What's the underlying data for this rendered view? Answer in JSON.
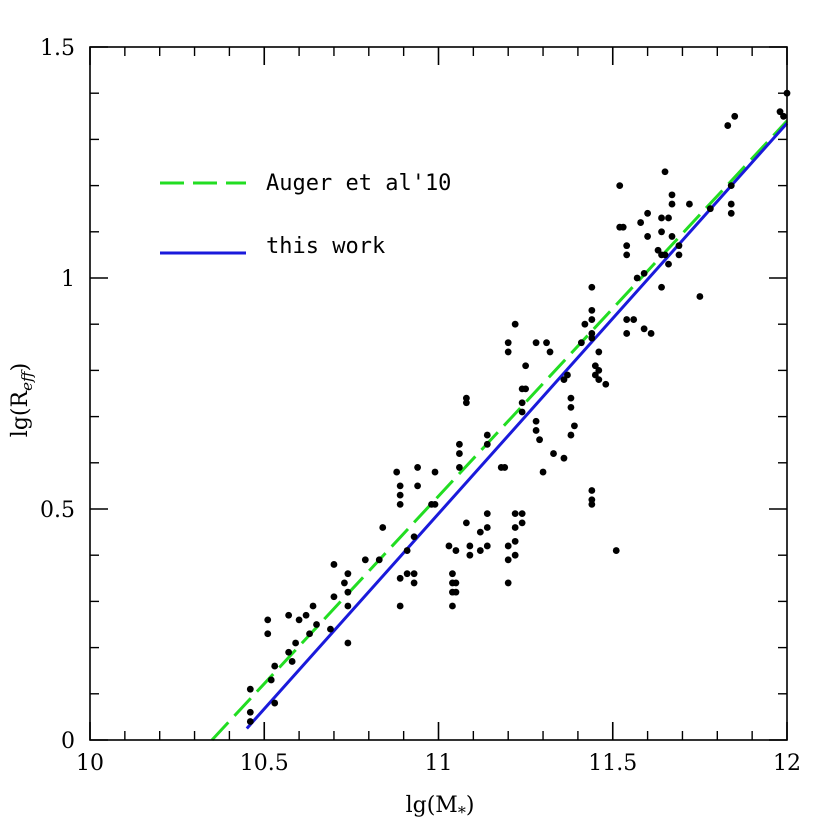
{
  "chart_data": {
    "type": "scatter",
    "xlabel": "lg(M",
    "xlabel_sub": "*",
    "xlabel_close": ")",
    "ylabel": "lg(R",
    "ylabel_sub": "eff",
    "ylabel_close": ")",
    "xlim": [
      10,
      12
    ],
    "ylim": [
      0,
      1.5
    ],
    "x_ticks": [
      {
        "value": 10,
        "label": "10"
      },
      {
        "value": 10.5,
        "label": "10.5"
      },
      {
        "value": 11,
        "label": "11"
      },
      {
        "value": 11.5,
        "label": "11.5"
      },
      {
        "value": 12,
        "label": "12"
      }
    ],
    "y_ticks": [
      {
        "value": 0,
        "label": "0"
      },
      {
        "value": 0.5,
        "label": "0.5"
      },
      {
        "value": 1,
        "label": "1"
      },
      {
        "value": 1.5,
        "label": "1.5"
      }
    ],
    "x_minor_step": 0.1,
    "y_minor_step": 0.1,
    "grid": false,
    "legend_position": "upper-left",
    "lines": [
      {
        "name": "Auger et al'10",
        "style": "dashed",
        "color": "#22dd22",
        "x": [
          10.35,
          12.0
        ],
        "y": [
          0.0,
          1.34
        ]
      },
      {
        "name": "this work",
        "style": "solid",
        "color": "#1a1adb",
        "x": [
          10.45,
          12.0
        ],
        "y": [
          0.025,
          1.335
        ]
      }
    ],
    "points": [
      [
        10.46,
        0.11
      ],
      [
        10.46,
        0.06
      ],
      [
        10.46,
        0.04
      ],
      [
        10.51,
        0.26
      ],
      [
        10.51,
        0.23
      ],
      [
        10.52,
        0.13
      ],
      [
        10.53,
        0.16
      ],
      [
        10.53,
        0.08
      ],
      [
        10.57,
        0.27
      ],
      [
        10.57,
        0.19
      ],
      [
        10.58,
        0.17
      ],
      [
        10.59,
        0.21
      ],
      [
        10.6,
        0.26
      ],
      [
        10.62,
        0.27
      ],
      [
        10.63,
        0.23
      ],
      [
        10.64,
        0.29
      ],
      [
        10.65,
        0.25
      ],
      [
        10.69,
        0.24
      ],
      [
        10.7,
        0.31
      ],
      [
        10.7,
        0.38
      ],
      [
        10.73,
        0.34
      ],
      [
        10.74,
        0.36
      ],
      [
        10.74,
        0.32
      ],
      [
        10.74,
        0.29
      ],
      [
        10.74,
        0.21
      ],
      [
        10.79,
        0.39
      ],
      [
        10.83,
        0.39
      ],
      [
        10.84,
        0.46
      ],
      [
        10.88,
        0.58
      ],
      [
        10.89,
        0.55
      ],
      [
        10.89,
        0.53
      ],
      [
        10.89,
        0.51
      ],
      [
        10.89,
        0.35
      ],
      [
        10.89,
        0.29
      ],
      [
        10.91,
        0.41
      ],
      [
        10.91,
        0.36
      ],
      [
        10.93,
        0.44
      ],
      [
        10.93,
        0.36
      ],
      [
        10.93,
        0.34
      ],
      [
        10.94,
        0.59
      ],
      [
        10.94,
        0.55
      ],
      [
        10.98,
        0.51
      ],
      [
        10.99,
        0.51
      ],
      [
        10.99,
        0.58
      ],
      [
        11.03,
        0.42
      ],
      [
        11.04,
        0.36
      ],
      [
        11.04,
        0.34
      ],
      [
        11.04,
        0.32
      ],
      [
        11.04,
        0.29
      ],
      [
        11.05,
        0.41
      ],
      [
        11.05,
        0.34
      ],
      [
        11.05,
        0.32
      ],
      [
        11.06,
        0.64
      ],
      [
        11.06,
        0.62
      ],
      [
        11.06,
        0.59
      ],
      [
        11.08,
        0.74
      ],
      [
        11.08,
        0.73
      ],
      [
        11.08,
        0.47
      ],
      [
        11.09,
        0.42
      ],
      [
        11.09,
        0.4
      ],
      [
        11.12,
        0.41
      ],
      [
        11.12,
        0.45
      ],
      [
        11.14,
        0.66
      ],
      [
        11.14,
        0.64
      ],
      [
        11.14,
        0.49
      ],
      [
        11.14,
        0.46
      ],
      [
        11.14,
        0.42
      ],
      [
        11.18,
        0.59
      ],
      [
        11.19,
        0.59
      ],
      [
        11.2,
        0.86
      ],
      [
        11.2,
        0.84
      ],
      [
        11.2,
        0.42
      ],
      [
        11.2,
        0.39
      ],
      [
        11.2,
        0.34
      ],
      [
        11.22,
        0.9
      ],
      [
        11.22,
        0.49
      ],
      [
        11.22,
        0.46
      ],
      [
        11.22,
        0.43
      ],
      [
        11.22,
        0.4
      ],
      [
        11.24,
        0.76
      ],
      [
        11.24,
        0.73
      ],
      [
        11.24,
        0.71
      ],
      [
        11.24,
        0.49
      ],
      [
        11.24,
        0.47
      ],
      [
        11.25,
        0.81
      ],
      [
        11.25,
        0.76
      ],
      [
        11.28,
        0.86
      ],
      [
        11.28,
        0.69
      ],
      [
        11.28,
        0.67
      ],
      [
        11.29,
        0.65
      ],
      [
        11.3,
        0.58
      ],
      [
        11.31,
        0.86
      ],
      [
        11.32,
        0.84
      ],
      [
        11.33,
        0.62
      ],
      [
        11.36,
        0.78
      ],
      [
        11.36,
        0.61
      ],
      [
        11.37,
        0.79
      ],
      [
        11.38,
        0.74
      ],
      [
        11.38,
        0.72
      ],
      [
        11.38,
        0.66
      ],
      [
        11.39,
        0.68
      ],
      [
        11.41,
        0.86
      ],
      [
        11.42,
        0.9
      ],
      [
        11.44,
        0.98
      ],
      [
        11.44,
        0.93
      ],
      [
        11.44,
        0.91
      ],
      [
        11.44,
        0.88
      ],
      [
        11.44,
        0.87
      ],
      [
        11.44,
        0.54
      ],
      [
        11.44,
        0.52
      ],
      [
        11.44,
        0.51
      ],
      [
        11.45,
        0.81
      ],
      [
        11.45,
        0.79
      ],
      [
        11.46,
        0.78
      ],
      [
        11.46,
        0.84
      ],
      [
        11.46,
        0.8
      ],
      [
        11.48,
        0.77
      ],
      [
        11.51,
        0.41
      ],
      [
        11.52,
        1.2
      ],
      [
        11.52,
        1.11
      ],
      [
        11.53,
        1.11
      ],
      [
        11.54,
        1.07
      ],
      [
        11.54,
        1.05
      ],
      [
        11.54,
        0.91
      ],
      [
        11.54,
        0.88
      ],
      [
        11.56,
        0.91
      ],
      [
        11.57,
        1.0
      ],
      [
        11.58,
        1.12
      ],
      [
        11.59,
        0.89
      ],
      [
        11.59,
        1.01
      ],
      [
        11.6,
        1.14
      ],
      [
        11.6,
        1.09
      ],
      [
        11.61,
        0.88
      ],
      [
        11.63,
        1.06
      ],
      [
        11.64,
        1.13
      ],
      [
        11.64,
        1.1
      ],
      [
        11.64,
        1.05
      ],
      [
        11.64,
        0.98
      ],
      [
        11.65,
        1.23
      ],
      [
        11.65,
        1.05
      ],
      [
        11.66,
        1.03
      ],
      [
        11.66,
        1.13
      ],
      [
        11.67,
        1.18
      ],
      [
        11.67,
        1.16
      ],
      [
        11.67,
        1.09
      ],
      [
        11.69,
        1.07
      ],
      [
        11.69,
        1.05
      ],
      [
        11.72,
        1.16
      ],
      [
        11.75,
        0.96
      ],
      [
        11.78,
        1.15
      ],
      [
        11.83,
        1.33
      ],
      [
        11.84,
        1.2
      ],
      [
        11.84,
        1.16
      ],
      [
        11.84,
        1.14
      ],
      [
        11.85,
        1.35
      ],
      [
        11.98,
        1.36
      ],
      [
        11.99,
        1.35
      ],
      [
        12.0,
        1.4
      ]
    ]
  }
}
